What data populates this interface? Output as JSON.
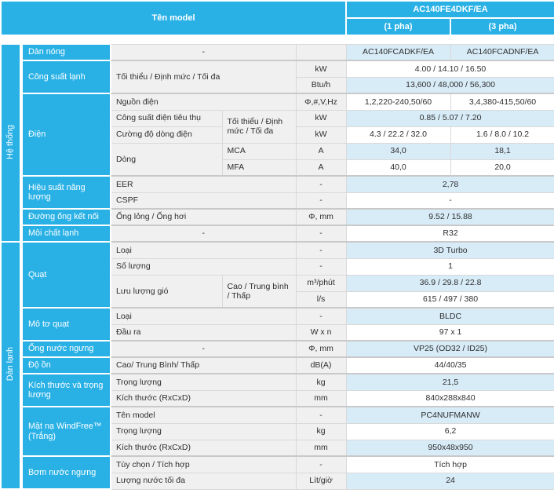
{
  "colors": {
    "teal": "#29b1e6",
    "light_blue_cell": "#d8ecf8",
    "gray_cell": "#f0f0f1",
    "border": "#d9d9d9",
    "text": "#2e2e2e"
  },
  "table": {
    "header": {
      "name_label": "Tên model",
      "model": "AC140FE4DKF/EA",
      "phase1": "(1 pha)",
      "phase2": "(3 pha)"
    },
    "rows": [
      {
        "grp": false,
        "cells": [
          {
            "k": "side",
            "t": "Hệ thống",
            "rs": 12
          },
          {
            "k": "cat",
            "t": "Dàn nóng"
          },
          {
            "k": "lblc",
            "t": "-",
            "cs": 2
          },
          {
            "k": "unit",
            "t": ""
          },
          {
            "k": "valb",
            "t": "AC140FCADKF/EA"
          },
          {
            "k": "valb",
            "t": "AC140FCADNF/EA"
          }
        ]
      },
      {
        "grp": true,
        "cells": [
          {
            "k": "cat",
            "t": "Công suất lạnh",
            "rs": 2
          },
          {
            "k": "lbl",
            "t": "Tối thiểu / Định mức / Tối đa",
            "cs": 2,
            "rs": 2
          },
          {
            "k": "unit",
            "t": "kW"
          },
          {
            "k": "val",
            "t": "4.00 / 14.10 / 16.50",
            "cs": 2
          }
        ]
      },
      {
        "grp": false,
        "cells": [
          {
            "k": "unit",
            "t": "Btu/h"
          },
          {
            "k": "valb",
            "t": "13,600 / 48,000 / 56,300",
            "cs": 2
          }
        ]
      },
      {
        "grp": true,
        "cells": [
          {
            "k": "cat",
            "t": "Điện",
            "rs": 5
          },
          {
            "k": "lbl",
            "t": "Nguồn điện",
            "cs": 2
          },
          {
            "k": "unit",
            "t": "Φ,#,V,Hz"
          },
          {
            "k": "val",
            "t": "1,2,220-240,50/60"
          },
          {
            "k": "val",
            "t": "3,4,380-415,50/60"
          }
        ]
      },
      {
        "grp": false,
        "cells": [
          {
            "k": "lbl",
            "t": "Công suất điện tiêu thụ"
          },
          {
            "k": "sub",
            "t": "Tối thiểu / Định mức / Tối đa",
            "rs": 2
          },
          {
            "k": "unit",
            "t": "kW"
          },
          {
            "k": "valb",
            "t": "0.85 / 5.07 / 7.20",
            "cs": 2
          }
        ]
      },
      {
        "grp": false,
        "cells": [
          {
            "k": "lbl",
            "t": "Cường độ dòng điện"
          },
          {
            "k": "unit",
            "t": "kW"
          },
          {
            "k": "val",
            "t": "4.3 / 22.2 / 32.0"
          },
          {
            "k": "val",
            "t": "1.6 / 8.0 / 10.2"
          }
        ]
      },
      {
        "grp": false,
        "cells": [
          {
            "k": "lbl",
            "t": "Dòng",
            "rs": 2
          },
          {
            "k": "sub",
            "t": "MCA"
          },
          {
            "k": "unit",
            "t": "A"
          },
          {
            "k": "valb",
            "t": "34,0"
          },
          {
            "k": "valb",
            "t": "18,1"
          }
        ]
      },
      {
        "grp": false,
        "cells": [
          {
            "k": "sub",
            "t": "MFA"
          },
          {
            "k": "unit",
            "t": "A"
          },
          {
            "k": "val",
            "t": "40,0"
          },
          {
            "k": "val",
            "t": "20,0"
          }
        ]
      },
      {
        "grp": true,
        "cells": [
          {
            "k": "cat",
            "t": "Hiệu suất năng lượng",
            "rs": 2
          },
          {
            "k": "lbl",
            "t": "EER",
            "cs": 2
          },
          {
            "k": "unit",
            "t": "-"
          },
          {
            "k": "valb",
            "t": "2,78",
            "cs": 2
          }
        ]
      },
      {
        "grp": false,
        "cells": [
          {
            "k": "lbl",
            "t": "CSPF",
            "cs": 2
          },
          {
            "k": "unit",
            "t": "-"
          },
          {
            "k": "val",
            "t": "-",
            "cs": 2
          }
        ]
      },
      {
        "grp": true,
        "cells": [
          {
            "k": "cat",
            "t": "Đường ống kết nối"
          },
          {
            "k": "lbl",
            "t": "Ống lỏng / Ống hơi",
            "cs": 2
          },
          {
            "k": "unit",
            "t": "Φ, mm"
          },
          {
            "k": "valb",
            "t": "9.52 / 15.88",
            "cs": 2
          }
        ]
      },
      {
        "grp": true,
        "cells": [
          {
            "k": "cat",
            "t": "Môi chất lạnh"
          },
          {
            "k": "lblc",
            "t": "-",
            "cs": 2
          },
          {
            "k": "unit",
            "t": "-"
          },
          {
            "k": "val",
            "t": "R32",
            "cs": 2
          }
        ]
      },
      {
        "grp": true,
        "cells": [
          {
            "k": "side",
            "t": "Dàn lạnh",
            "rs": 15
          },
          {
            "k": "cat",
            "t": "Quạt",
            "rs": 4
          },
          {
            "k": "lbl",
            "t": "Loại",
            "cs": 2
          },
          {
            "k": "unit",
            "t": "-"
          },
          {
            "k": "valb",
            "t": "3D Turbo",
            "cs": 2
          }
        ]
      },
      {
        "grp": false,
        "cells": [
          {
            "k": "lbl",
            "t": "Số lượng",
            "cs": 2
          },
          {
            "k": "unit",
            "t": "-"
          },
          {
            "k": "val",
            "t": "1",
            "cs": 2
          }
        ]
      },
      {
        "grp": false,
        "cells": [
          {
            "k": "lbl",
            "t": "Lưu lượng gió",
            "rs": 2
          },
          {
            "k": "sub",
            "t": "Cao / Trung bình / Thấp",
            "rs": 2
          },
          {
            "k": "unit",
            "t": "m³/phút"
          },
          {
            "k": "valb",
            "t": "36.9 / 29.8 / 22.8",
            "cs": 2
          }
        ]
      },
      {
        "grp": false,
        "cells": [
          {
            "k": "unit",
            "t": "l/s"
          },
          {
            "k": "val",
            "t": "615 / 497 / 380",
            "cs": 2
          }
        ]
      },
      {
        "grp": true,
        "cells": [
          {
            "k": "cat",
            "t": "Mô tơ quạt",
            "rs": 2
          },
          {
            "k": "lbl",
            "t": "Loại",
            "cs": 2
          },
          {
            "k": "unit",
            "t": "-"
          },
          {
            "k": "valb",
            "t": "BLDC",
            "cs": 2
          }
        ]
      },
      {
        "grp": false,
        "cells": [
          {
            "k": "lbl",
            "t": "Đầu ra",
            "cs": 2
          },
          {
            "k": "unit",
            "t": "W x n"
          },
          {
            "k": "val",
            "t": "97 x 1",
            "cs": 2
          }
        ]
      },
      {
        "grp": true,
        "cells": [
          {
            "k": "cat",
            "t": "Ống nước ngưng"
          },
          {
            "k": "lblc",
            "t": "-",
            "cs": 2
          },
          {
            "k": "unit",
            "t": "Φ, mm"
          },
          {
            "k": "valb",
            "t": "VP25 (OD32 / ID25)",
            "cs": 2
          }
        ]
      },
      {
        "grp": true,
        "cells": [
          {
            "k": "cat",
            "t": "Độ ồn"
          },
          {
            "k": "lbl",
            "t": "Cao/ Trung Bình/ Thấp",
            "cs": 2
          },
          {
            "k": "unit",
            "t": "dB(A)"
          },
          {
            "k": "val",
            "t": "44/40/35",
            "cs": 2
          }
        ]
      },
      {
        "grp": true,
        "cells": [
          {
            "k": "cat",
            "t": "Kích thước và trọng lượng",
            "rs": 2
          },
          {
            "k": "lbl",
            "t": "Trọng lượng",
            "cs": 2
          },
          {
            "k": "unit",
            "t": "kg"
          },
          {
            "k": "valb",
            "t": "21,5",
            "cs": 2
          }
        ]
      },
      {
        "grp": false,
        "cells": [
          {
            "k": "lbl",
            "t": "Kích thước (RxCxD)",
            "cs": 2
          },
          {
            "k": "unit",
            "t": "mm"
          },
          {
            "k": "val",
            "t": "840x288x840",
            "cs": 2
          }
        ]
      },
      {
        "grp": true,
        "cells": [
          {
            "k": "cat",
            "t": "Mặt nạ WindFree™ (Trắng)",
            "rs": 3
          },
          {
            "k": "lbl",
            "t": "Tên model",
            "cs": 2
          },
          {
            "k": "unit",
            "t": "-"
          },
          {
            "k": "valb",
            "t": "PC4NUFMANW",
            "cs": 2
          }
        ]
      },
      {
        "grp": false,
        "cells": [
          {
            "k": "lbl",
            "t": "Trọng lượng",
            "cs": 2
          },
          {
            "k": "unit",
            "t": "kg"
          },
          {
            "k": "val",
            "t": "6,2",
            "cs": 2
          }
        ]
      },
      {
        "grp": false,
        "cells": [
          {
            "k": "lbl",
            "t": "Kích thước (RxCxD)",
            "cs": 2
          },
          {
            "k": "unit",
            "t": "mm"
          },
          {
            "k": "valb",
            "t": "950x48x950",
            "cs": 2
          }
        ]
      },
      {
        "grp": true,
        "cells": [
          {
            "k": "cat",
            "t": "Bơm nước ngưng",
            "rs": 2
          },
          {
            "k": "lbl",
            "t": "Tùy chọn / Tích hợp",
            "cs": 2
          },
          {
            "k": "unit",
            "t": "-"
          },
          {
            "k": "val",
            "t": "Tích hợp",
            "cs": 2
          }
        ]
      },
      {
        "grp": false,
        "cells": [
          {
            "k": "lbl",
            "t": "Lượng nước tối đa",
            "cs": 2
          },
          {
            "k": "unit",
            "t": "Lít/giờ"
          },
          {
            "k": "valb",
            "t": "24",
            "cs": 2
          }
        ]
      }
    ]
  }
}
